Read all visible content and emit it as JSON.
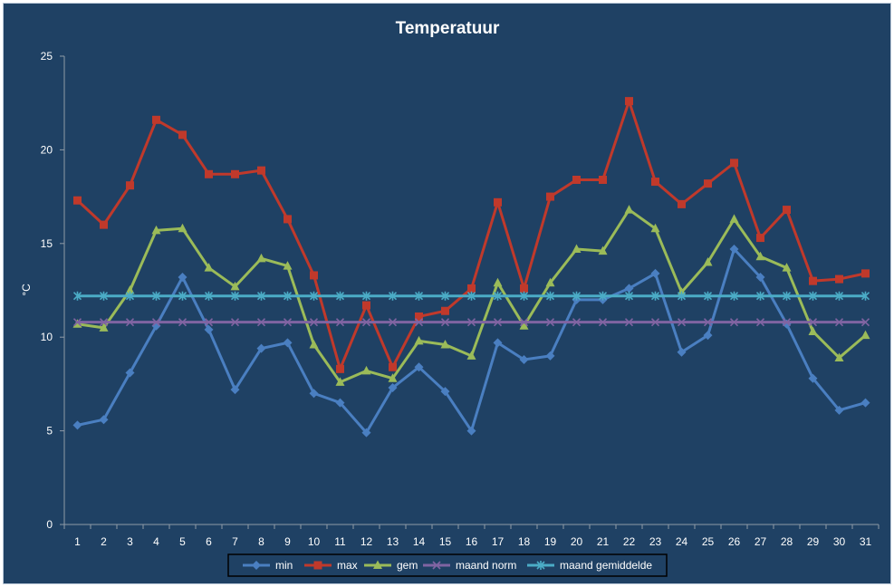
{
  "chart_data": {
    "type": "line",
    "title": "Temperatuur",
    "xlabel": "",
    "ylabel": "°C",
    "x": [
      1,
      2,
      3,
      4,
      5,
      6,
      7,
      8,
      9,
      10,
      11,
      12,
      13,
      14,
      15,
      16,
      17,
      18,
      19,
      20,
      21,
      22,
      23,
      24,
      25,
      26,
      27,
      28,
      29,
      30,
      31
    ],
    "ylim": [
      0,
      25
    ],
    "yticks": [
      0,
      5,
      10,
      15,
      20,
      25
    ],
    "grid": false,
    "legend_position": "bottom",
    "background_color": "#1f4164",
    "series": [
      {
        "name": "min",
        "color": "#4a7fc1",
        "marker": "diamond",
        "values": [
          5.3,
          5.6,
          8.1,
          10.6,
          13.2,
          10.4,
          7.2,
          9.4,
          9.7,
          7.0,
          6.5,
          4.9,
          7.3,
          8.4,
          7.1,
          5.0,
          9.7,
          8.8,
          9.0,
          12.0,
          12.0,
          12.6,
          13.4,
          9.2,
          10.1,
          14.7,
          13.2,
          10.7,
          7.8,
          6.1,
          6.5
        ]
      },
      {
        "name": "max",
        "color": "#c0392b",
        "marker": "square",
        "values": [
          17.3,
          16.0,
          18.1,
          21.6,
          20.8,
          18.7,
          18.7,
          18.9,
          16.3,
          13.3,
          8.3,
          11.7,
          8.4,
          11.1,
          11.4,
          12.6,
          17.2,
          12.6,
          17.5,
          18.4,
          18.4,
          22.6,
          18.3,
          17.1,
          18.2,
          19.3,
          15.3,
          16.8,
          13.0,
          13.1,
          13.4
        ]
      },
      {
        "name": "gem",
        "color": "#9bbb59",
        "marker": "triangle",
        "values": [
          10.7,
          10.5,
          12.5,
          15.7,
          15.8,
          13.7,
          12.7,
          14.2,
          13.8,
          9.6,
          7.6,
          8.2,
          7.8,
          9.8,
          9.6,
          9.0,
          12.9,
          10.6,
          12.9,
          14.7,
          14.6,
          16.8,
          15.8,
          12.4,
          14.0,
          16.3,
          14.3,
          13.7,
          10.3,
          8.9,
          10.1
        ]
      },
      {
        "name": "maand norm",
        "color": "#8064a2",
        "marker": "x",
        "values": [
          10.8,
          10.8,
          10.8,
          10.8,
          10.8,
          10.8,
          10.8,
          10.8,
          10.8,
          10.8,
          10.8,
          10.8,
          10.8,
          10.8,
          10.8,
          10.8,
          10.8,
          10.8,
          10.8,
          10.8,
          10.8,
          10.8,
          10.8,
          10.8,
          10.8,
          10.8,
          10.8,
          10.8,
          10.8,
          10.8,
          10.8
        ]
      },
      {
        "name": "maand gemiddelde",
        "color": "#4bacc6",
        "marker": "star",
        "values": [
          12.2,
          12.2,
          12.2,
          12.2,
          12.2,
          12.2,
          12.2,
          12.2,
          12.2,
          12.2,
          12.2,
          12.2,
          12.2,
          12.2,
          12.2,
          12.2,
          12.2,
          12.2,
          12.2,
          12.2,
          12.2,
          12.2,
          12.2,
          12.2,
          12.2,
          12.2,
          12.2,
          12.2,
          12.2,
          12.2,
          12.2
        ]
      }
    ]
  }
}
